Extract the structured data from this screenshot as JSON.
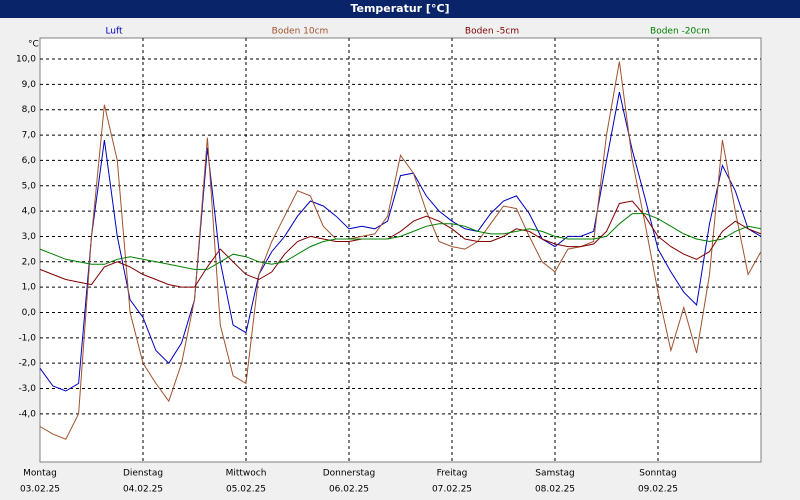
{
  "chart_data": {
    "type": "line",
    "title": "Temperatur [°C]",
    "y_unit": "°C",
    "x": [
      0,
      0.125,
      0.25,
      0.375,
      0.5,
      0.625,
      0.75,
      0.875,
      1,
      1.125,
      1.25,
      1.375,
      1.5,
      1.625,
      1.75,
      1.875,
      2,
      2.125,
      2.25,
      2.375,
      2.5,
      2.625,
      2.75,
      2.875,
      3,
      3.125,
      3.25,
      3.375,
      3.5,
      3.625,
      3.75,
      3.875,
      4,
      4.125,
      4.25,
      4.375,
      4.5,
      4.625,
      4.75,
      4.875,
      5,
      5.125,
      5.25,
      5.375,
      5.5,
      5.625,
      5.75,
      5.875,
      6,
      6.125,
      6.25,
      6.375,
      6.5,
      6.625,
      6.75,
      6.875,
      7
    ],
    "xlim": [
      0,
      7
    ],
    "xticks": [
      {
        "value": 0,
        "label": "Montag",
        "date": "03.02.25"
      },
      {
        "value": 1,
        "label": "Dienstag",
        "date": "04.02.25"
      },
      {
        "value": 2,
        "label": "Mittwoch",
        "date": "05.02.25"
      },
      {
        "value": 3,
        "label": "Donnerstag",
        "date": "06.02.25"
      },
      {
        "value": 4,
        "label": "Freitag",
        "date": "07.02.25"
      },
      {
        "value": 5,
        "label": "Samstag",
        "date": "08.02.25"
      },
      {
        "value": 6,
        "label": "Sonntag",
        "date": "09.02.25"
      }
    ],
    "ylim": [
      -5.9,
      10.83
    ],
    "yticks": [
      {
        "value": 10,
        "label": "10,0"
      },
      {
        "value": 9,
        "label": "9,0"
      },
      {
        "value": 8,
        "label": "8,0"
      },
      {
        "value": 7,
        "label": "7,0"
      },
      {
        "value": 6,
        "label": "6,0"
      },
      {
        "value": 5,
        "label": "5,0"
      },
      {
        "value": 4,
        "label": "4,0"
      },
      {
        "value": 3,
        "label": "3,0"
      },
      {
        "value": 2,
        "label": "2,0"
      },
      {
        "value": 1,
        "label": "1,0"
      },
      {
        "value": 0,
        "label": "0,0"
      },
      {
        "value": -1,
        "label": "-1,0"
      },
      {
        "value": -2,
        "label": "-2,0"
      },
      {
        "value": -3,
        "label": "-3,0"
      },
      {
        "value": -4,
        "label": "-4,0"
      }
    ],
    "grid": true,
    "series": [
      {
        "name": "Luft",
        "color": "#0000c0",
        "values": [
          -2.2,
          -2.9,
          -3.1,
          -2.8,
          3.0,
          6.8,
          3.0,
          0.5,
          -0.2,
          -1.5,
          -2.0,
          -1.2,
          0.5,
          6.5,
          2.0,
          -0.5,
          -0.8,
          1.5,
          2.4,
          3.0,
          3.8,
          4.4,
          4.2,
          3.8,
          3.3,
          3.4,
          3.3,
          3.6,
          5.4,
          5.5,
          4.6,
          4.0,
          3.6,
          3.3,
          3.2,
          3.9,
          4.4,
          4.6,
          3.9,
          2.9,
          2.6,
          3.0,
          3.0,
          3.2,
          6.0,
          8.7,
          6.4,
          4.5,
          2.5,
          1.6,
          0.8,
          0.3,
          3.5,
          5.8,
          4.8,
          3.3,
          3.0
        ]
      },
      {
        "name": "Boden 10cm",
        "color": "#a0522d",
        "values": [
          -4.5,
          -4.8,
          -5.0,
          -4.0,
          3.0,
          8.2,
          6.0,
          0,
          -2.0,
          -2.8,
          -3.5,
          -2.0,
          0.5,
          6.9,
          -0.5,
          -2.5,
          -2.8,
          1.5,
          2.8,
          3.8,
          4.8,
          4.6,
          3.4,
          2.9,
          2.9,
          3.0,
          3.1,
          3.8,
          6.2,
          5.5,
          4.0,
          2.8,
          2.6,
          2.5,
          2.8,
          3.5,
          4.2,
          4.1,
          3.0,
          2.0,
          1.6,
          2.5,
          2.6,
          2.8,
          7.0,
          9.9,
          6.0,
          3.5,
          0.8,
          -1.5,
          0.2,
          -1.6,
          1.5,
          6.8,
          4.0,
          1.5,
          2.4
        ]
      },
      {
        "name": "Boden -5cm",
        "color": "#800000",
        "values": [
          1.7,
          1.5,
          1.3,
          1.2,
          1.1,
          1.8,
          2.0,
          1.8,
          1.5,
          1.3,
          1.1,
          1.0,
          1.0,
          1.8,
          2.5,
          2.0,
          1.5,
          1.3,
          1.6,
          2.3,
          2.8,
          3.0,
          2.9,
          2.8,
          2.8,
          2.9,
          2.9,
          2.9,
          3.2,
          3.6,
          3.8,
          3.6,
          3.3,
          2.9,
          2.8,
          2.8,
          3.0,
          3.3,
          3.2,
          2.9,
          2.7,
          2.6,
          2.6,
          2.7,
          3.2,
          4.3,
          4.4,
          3.8,
          3.0,
          2.6,
          2.3,
          2.1,
          2.4,
          3.2,
          3.6,
          3.3,
          3.1
        ]
      },
      {
        "name": "Boden -20cm",
        "color": "#008000",
        "values": [
          2.5,
          2.3,
          2.1,
          2.0,
          1.9,
          1.9,
          2.1,
          2.2,
          2.1,
          2.0,
          1.9,
          1.8,
          1.7,
          1.7,
          2.0,
          2.3,
          2.2,
          2.0,
          1.9,
          2.0,
          2.3,
          2.6,
          2.8,
          2.9,
          2.9,
          2.9,
          2.9,
          2.9,
          3.0,
          3.2,
          3.4,
          3.5,
          3.5,
          3.4,
          3.2,
          3.1,
          3.1,
          3.2,
          3.3,
          3.2,
          3.0,
          2.9,
          2.9,
          2.9,
          3.0,
          3.5,
          3.9,
          3.9,
          3.7,
          3.4,
          3.1,
          2.9,
          2.8,
          2.9,
          3.2,
          3.4,
          3.3
        ]
      }
    ]
  }
}
